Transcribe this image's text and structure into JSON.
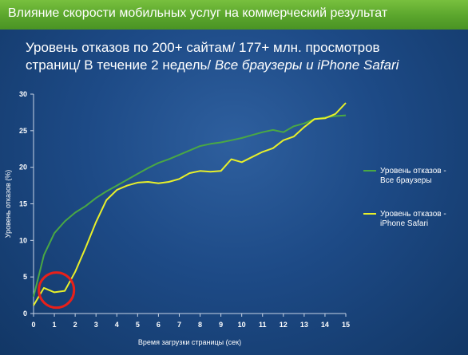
{
  "banner": {
    "title": "Влияние скорости мобильных услуг на коммерческий результат"
  },
  "subtitle": {
    "line1": "Уровень отказов по 200+ сайтам/ 177+ млн. просмотров",
    "line2_normal": "страниц/ В течение 2 недель/ ",
    "line2_italic": "Все браузеры и iPhone  Safari"
  },
  "colors": {
    "banner": "#5aa52c",
    "series_all": "#4aa844",
    "series_iphone": "#e8f02a",
    "highlight": "#e8201a"
  },
  "chart_data": {
    "type": "line",
    "xlabel": "Время загрузки страницы (сек)",
    "ylabel": "Уровень отказов (%)",
    "xlim": [
      0,
      15
    ],
    "ylim": [
      0,
      30
    ],
    "xticks": [
      "0",
      "1",
      "2",
      "3",
      "4",
      "5",
      "6",
      "7",
      "8",
      "9",
      "10",
      "11",
      "12",
      "13",
      "14",
      "15"
    ],
    "yticks": [
      "0",
      "5",
      "10",
      "15",
      "20",
      "25",
      "30"
    ],
    "grid": false,
    "legend_position": "right",
    "series": [
      {
        "name": "Уровень отказов - Все браузеры",
        "color": "#4aa844",
        "x": [
          0,
          0.5,
          1,
          1.5,
          2,
          2.5,
          3,
          3.5,
          4,
          4.5,
          5,
          5.5,
          6,
          6.5,
          7,
          7.5,
          8,
          8.5,
          9,
          9.5,
          10,
          10.5,
          11,
          11.5,
          12,
          12.5,
          13,
          13.5,
          14,
          14.5,
          15
        ],
        "y": [
          2.3,
          8,
          11,
          12.6,
          13.8,
          14.7,
          15.8,
          16.7,
          17.5,
          18.3,
          19.1,
          19.9,
          20.6,
          21.1,
          21.7,
          22.3,
          22.9,
          23.2,
          23.4,
          23.7,
          24,
          24.4,
          24.8,
          25.1,
          24.8,
          25.6,
          26,
          26.6,
          26.8,
          27,
          27.1
        ]
      },
      {
        "name": "Уровень отказов - iPhone Safari",
        "color": "#e8f02a",
        "x": [
          0,
          0.5,
          1,
          1.5,
          2,
          2.5,
          3,
          3.5,
          4,
          4.5,
          5,
          5.5,
          6,
          6.5,
          7,
          7.5,
          8,
          8.5,
          9,
          9.5,
          10,
          10.5,
          11,
          11.5,
          12,
          12.5,
          13,
          13.5,
          14,
          14.5,
          15
        ],
        "y": [
          1.1,
          3.5,
          2.9,
          3.1,
          5.7,
          9,
          12.5,
          15.5,
          16.9,
          17.5,
          17.9,
          18,
          17.8,
          18,
          18.4,
          19.2,
          19.5,
          19.4,
          19.5,
          21.1,
          20.7,
          21.4,
          22.1,
          22.6,
          23.7,
          24.2,
          25.5,
          26.6,
          26.7,
          27.3,
          28.8
        ]
      }
    ],
    "annotations": [
      {
        "type": "circle",
        "x": 1.1,
        "y": 3.2,
        "color": "#e8201a"
      }
    ],
    "legend": {
      "entries": [
        {
          "line1": "Уровень отказов -",
          "line2": "Все браузеры",
          "color": "#4aa844"
        },
        {
          "line1": "Уровень отказов -",
          "line2": "iPhone Safari",
          "color": "#e8f02a"
        }
      ]
    }
  }
}
